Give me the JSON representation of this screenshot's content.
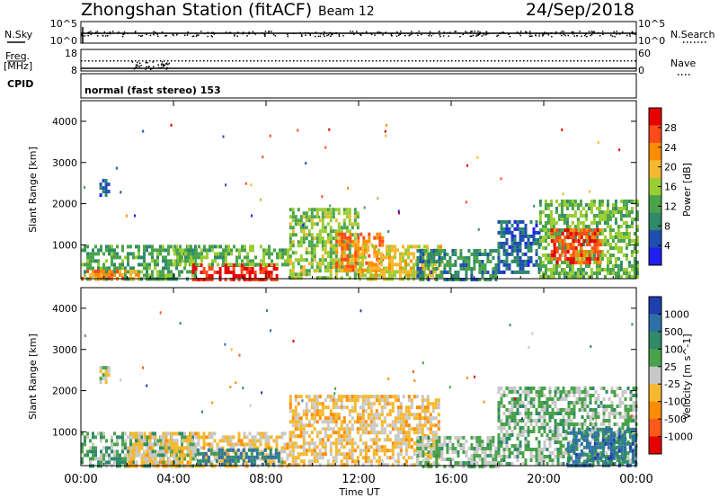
{
  "header": {
    "title": "Zhongshan Station (fitACF)",
    "beam": "Beam 12",
    "date": "24/Sep/2018"
  },
  "strips": {
    "nsky_label": "N.Sky",
    "nsky_ticks": [
      "10^5",
      "10^0"
    ],
    "nsearch_label": "N.Search",
    "nsearch_ticks": [
      "10^5",
      "10^0"
    ],
    "freq_label_1": "Freq.",
    "freq_label_2": "[MHz]",
    "freq_ticks": [
      "18",
      "8"
    ],
    "nave_label": "Nave",
    "nave_ticks": [
      "60",
      "0"
    ],
    "cpid_label": "CPID",
    "cpid_text": "normal (fast stereo) 153"
  },
  "x_axis": {
    "label": "Time UT",
    "ticks": [
      "00:00",
      "04:00",
      "08:00",
      "12:00",
      "16:00",
      "20:00",
      "00:00"
    ]
  },
  "colors": {
    "power": [
      "#1f1ff0",
      "#1e4fb0",
      "#2f8a6a",
      "#4aa34a",
      "#9acd32",
      "#f5b82e",
      "#ff8c00",
      "#ff4a1a",
      "#e60000"
    ],
    "velocity": [
      "#e60000",
      "#ff5a1a",
      "#ff8c00",
      "#f5b82e",
      "#c8c8c8",
      "#4aa34a",
      "#2f8a6a",
      "#2f6fa8",
      "#1f3fb0"
    ]
  },
  "chart_data": [
    {
      "type": "heatmap",
      "panel": "power",
      "ylabel": "Slant Range [km]",
      "xlabel": "",
      "ylim": [
        180,
        4500
      ],
      "y_ticks": [
        "1000",
        "2000",
        "3000",
        "4000"
      ],
      "xlim_hours": [
        0,
        24
      ],
      "colorbar": {
        "label": "Power [dB]",
        "ticks": [
          "4",
          "8",
          "12",
          "16",
          "20",
          "24",
          "28"
        ],
        "range": [
          0,
          30
        ]
      },
      "regions": [
        {
          "x0": 0.0,
          "x1": 5.0,
          "y0": 200,
          "y1": 1000,
          "value": 11
        },
        {
          "x0": 0.0,
          "x1": 2.5,
          "y0": 200,
          "y1": 400,
          "value": 22
        },
        {
          "x0": 0.8,
          "x1": 1.2,
          "y0": 2200,
          "y1": 2600,
          "value": 6
        },
        {
          "x0": 4.8,
          "x1": 8.5,
          "y0": 200,
          "y1": 550,
          "value": 27
        },
        {
          "x0": 4.0,
          "x1": 9.0,
          "y0": 550,
          "y1": 1000,
          "value": 13
        },
        {
          "x0": 9.0,
          "x1": 12.0,
          "y0": 200,
          "y1": 1900,
          "value": 14
        },
        {
          "x0": 11.0,
          "x1": 13.0,
          "y0": 400,
          "y1": 1300,
          "value": 22
        },
        {
          "x0": 12.0,
          "x1": 15.5,
          "y0": 200,
          "y1": 1000,
          "value": 17
        },
        {
          "x0": 14.5,
          "x1": 18.0,
          "y0": 200,
          "y1": 900,
          "value": 9
        },
        {
          "x0": 18.0,
          "x1": 19.8,
          "y0": 300,
          "y1": 1600,
          "value": 6
        },
        {
          "x0": 19.8,
          "x1": 24.0,
          "y0": 200,
          "y1": 2100,
          "value": 13
        },
        {
          "x0": 20.3,
          "x1": 22.5,
          "y0": 600,
          "y1": 1400,
          "value": 25
        }
      ]
    },
    {
      "type": "heatmap",
      "panel": "velocity",
      "ylabel": "Slant Range [km]",
      "xlabel": "Time UT",
      "ylim": [
        180,
        4500
      ],
      "y_ticks": [
        "1000",
        "2000",
        "3000",
        "4000"
      ],
      "xlim_hours": [
        0,
        24
      ],
      "colorbar": {
        "label": "Velocity [m s^-1]",
        "ticks": [
          "1000",
          "500",
          "100",
          "25",
          "-25",
          "-100",
          "-500",
          "-1000"
        ],
        "range": [
          -1200,
          1200
        ]
      },
      "regions": [
        {
          "x0": 0.0,
          "x1": 5.0,
          "y0": 200,
          "y1": 1000,
          "value": 300
        },
        {
          "x0": 0.8,
          "x1": 1.2,
          "y0": 2200,
          "y1": 2600,
          "value": 0
        },
        {
          "x0": 2.0,
          "x1": 9.0,
          "y0": 200,
          "y1": 1000,
          "value": -150
        },
        {
          "x0": 5.0,
          "x1": 8.5,
          "y0": 200,
          "y1": 600,
          "value": 600
        },
        {
          "x0": 9.0,
          "x1": 15.5,
          "y0": 200,
          "y1": 1900,
          "value": -200
        },
        {
          "x0": 14.5,
          "x1": 18.0,
          "y0": 200,
          "y1": 900,
          "value": 150
        },
        {
          "x0": 18.0,
          "x1": 24.0,
          "y0": 200,
          "y1": 2100,
          "value": 200
        },
        {
          "x0": 21.0,
          "x1": 24.0,
          "y0": 200,
          "y1": 1100,
          "value": 700
        }
      ]
    }
  ]
}
